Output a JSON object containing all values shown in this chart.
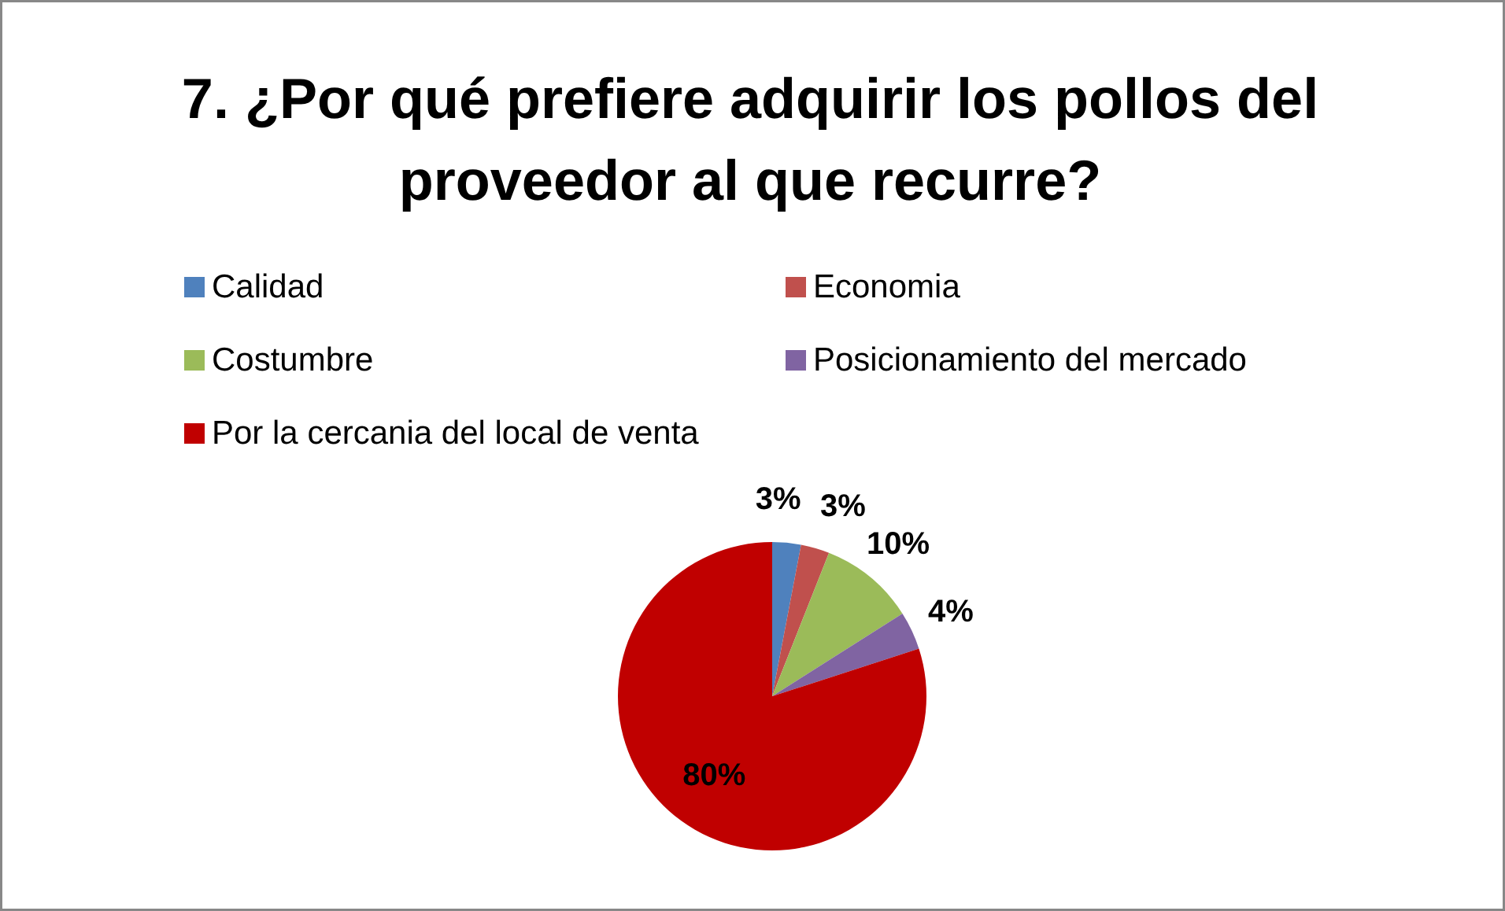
{
  "chart_data": {
    "type": "pie",
    "title": "7. ¿Por qué prefiere adquirir los pollos del proveedor al que recurre?",
    "categories": [
      "Calidad",
      "Economia",
      "Costumbre",
      "Posicionamiento del mercado",
      "Por la cercania del local de venta"
    ],
    "values": [
      3,
      3,
      10,
      4,
      80
    ],
    "colors": [
      "#4f81bd",
      "#c0504d",
      "#9bbb59",
      "#8064a2",
      "#c00000"
    ],
    "value_labels": [
      "3%",
      "3%",
      "10%",
      "4%",
      "80%"
    ],
    "legend": "top"
  }
}
